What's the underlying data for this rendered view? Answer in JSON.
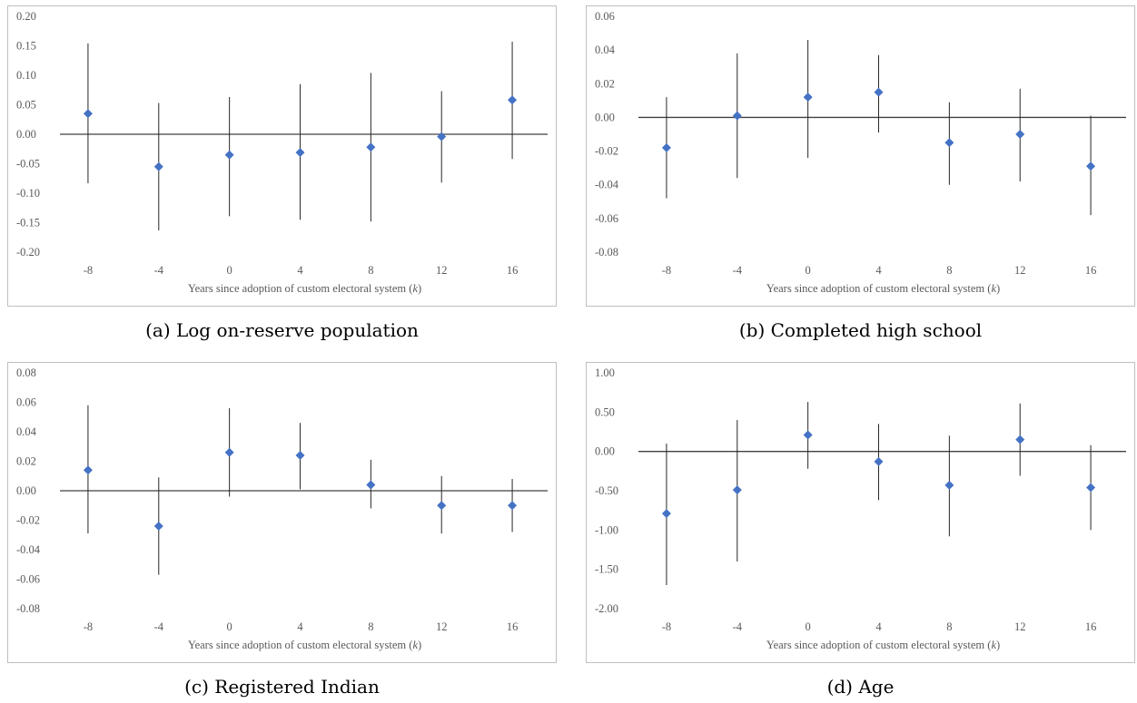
{
  "charts": [
    {
      "id": "a",
      "caption": "(a) Log on-reserve population",
      "chart_data": {
        "type": "scatter",
        "title": "",
        "xlabel": "Years since adoption of custom electoral system (k)",
        "xlabel_main": "Years since adoption of custom electoral system (",
        "xlabel_var": "k",
        "xlabel_tail": ")",
        "ylabel": "",
        "categories": [
          "-8",
          "-4",
          "0",
          "4",
          "8",
          "12",
          "16"
        ],
        "y_ticks": [
          "0.20",
          "0.15",
          "0.10",
          "0.05",
          "0.00",
          "-0.05",
          "-0.10",
          "-0.15",
          "-0.20"
        ],
        "ylim": [
          -0.2,
          0.2
        ],
        "values": [
          0.035,
          -0.055,
          -0.035,
          -0.031,
          -0.022,
          -0.004,
          0.058
        ],
        "lower": [
          -0.083,
          -0.163,
          -0.139,
          -0.145,
          -0.148,
          -0.082,
          -0.042
        ],
        "upper": [
          0.154,
          0.053,
          0.063,
          0.085,
          0.104,
          0.073,
          0.157
        ],
        "marker_color": "#4472c4",
        "grid": false
      }
    },
    {
      "id": "b",
      "caption": "(b) Completed high school",
      "chart_data": {
        "type": "scatter",
        "title": "",
        "xlabel": "Years since adoption of custom electoral system (k)",
        "xlabel_main": "Years since adoption of custom electoral system (",
        "xlabel_var": "k",
        "xlabel_tail": ")",
        "ylabel": "",
        "categories": [
          "-8",
          "-4",
          "0",
          "4",
          "8",
          "12",
          "16"
        ],
        "y_ticks": [
          "0.06",
          "0.04",
          "0.02",
          "0.00",
          "-0.02",
          "-0.04",
          "-0.06",
          "-0.08"
        ],
        "ylim": [
          -0.08,
          0.06
        ],
        "values": [
          -0.018,
          0.001,
          0.012,
          0.015,
          -0.015,
          -0.01,
          -0.029
        ],
        "lower": [
          -0.048,
          -0.036,
          -0.024,
          -0.009,
          -0.04,
          -0.038,
          -0.058
        ],
        "upper": [
          0.012,
          0.038,
          0.046,
          0.037,
          0.009,
          0.017,
          0.001
        ],
        "marker_color": "#4472c4",
        "grid": false
      }
    },
    {
      "id": "c",
      "caption": "(c) Registered Indian",
      "chart_data": {
        "type": "scatter",
        "title": "",
        "xlabel": "Years since adoption of custom electoral system (k)",
        "xlabel_main": "Years since adoption of custom electoral system (",
        "xlabel_var": "k",
        "xlabel_tail": ")",
        "ylabel": "",
        "categories": [
          "-8",
          "-4",
          "0",
          "4",
          "8",
          "12",
          "16"
        ],
        "y_ticks": [
          "0.08",
          "0.06",
          "0.04",
          "0.02",
          "0.00",
          "-0.02",
          "-0.04",
          "-0.06",
          "-0.08"
        ],
        "ylim": [
          -0.08,
          0.08
        ],
        "values": [
          0.014,
          -0.024,
          0.026,
          0.024,
          0.004,
          -0.01,
          -0.01
        ],
        "lower": [
          -0.029,
          -0.057,
          -0.004,
          0.001,
          -0.012,
          -0.029,
          -0.028
        ],
        "upper": [
          0.058,
          0.009,
          0.056,
          0.046,
          0.021,
          0.01,
          0.008
        ],
        "marker_color": "#4472c4",
        "grid": false
      }
    },
    {
      "id": "d",
      "caption": "(d) Age",
      "chart_data": {
        "type": "scatter",
        "title": "",
        "xlabel": "Years since adoption of custom electoral system (k)",
        "xlabel_main": "Years since adoption of custom electoral system (",
        "xlabel_var": "k",
        "xlabel_tail": ")",
        "ylabel": "",
        "categories": [
          "-8",
          "-4",
          "0",
          "4",
          "8",
          "12",
          "16"
        ],
        "y_ticks": [
          "1.00",
          "0.50",
          "0.00",
          "-0.50",
          "-1.00",
          "-1.50",
          "-2.00"
        ],
        "ylim": [
          -2.0,
          1.0
        ],
        "values": [
          -0.79,
          -0.49,
          0.21,
          -0.13,
          -0.43,
          0.15,
          -0.46
        ],
        "lower": [
          -1.7,
          -1.4,
          -0.22,
          -0.62,
          -1.08,
          -0.31,
          -1.0
        ],
        "upper": [
          0.1,
          0.4,
          0.63,
          0.35,
          0.2,
          0.61,
          0.08
        ],
        "marker_color": "#4472c4",
        "grid": false
      }
    }
  ]
}
